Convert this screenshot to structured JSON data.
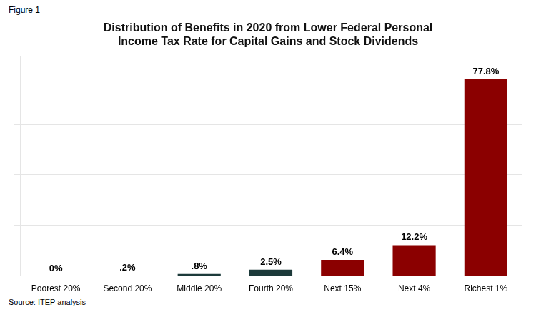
{
  "chart_data": {
    "type": "bar",
    "title": "Distribution of Benefits in 2020 from Lower Federal Personal\nIncome Tax Rate for Capital Gains and Stock Dividends",
    "categories": [
      "Poorest 20%",
      "Second 20%",
      "Middle 20%",
      "Fourth 20%",
      "Next 15%",
      "Next 4%",
      "Richest 1%"
    ],
    "values": [
      0.0,
      0.2,
      0.8,
      2.5,
      6.4,
      12.2,
      77.8
    ],
    "value_labels": [
      "0%",
      ".2%",
      ".8%",
      "2.5%",
      "6.4%",
      "12.2%",
      "77.8%"
    ],
    "colors": [
      "#8B0000",
      "#8B0000",
      "#1C3A3A",
      "#1C3A3A",
      "#8B0000",
      "#8B0000",
      "#8B0000"
    ],
    "ylim": [
      0,
      87
    ],
    "yticks": [
      0,
      20,
      40,
      60,
      80
    ],
    "grid": true,
    "tick_labels": "x",
    "data_labels": true,
    "annotations": [
      "Figure 1",
      "Source: ITEP analysis"
    ]
  }
}
